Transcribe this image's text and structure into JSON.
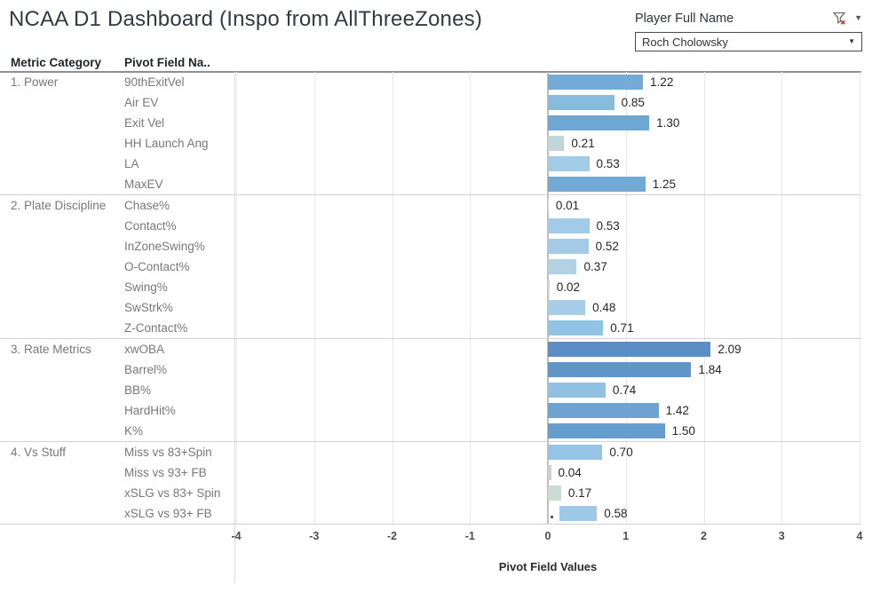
{
  "header": {
    "title": "NCAA D1 Dashboard (Inspo from AllThreeZones)",
    "filter": {
      "label": "Player Full Name",
      "selected": "Roch Cholowsky"
    }
  },
  "table": {
    "col1_header": "Metric Category",
    "col2_header": "Pivot Field Na.."
  },
  "chart_data": {
    "type": "bar",
    "orientation": "horizontal",
    "xlabel": "Pivot Field Values",
    "xlim": [
      -4,
      4
    ],
    "x_ticks": [
      -4,
      -3,
      -2,
      -1,
      0,
      1,
      2,
      3,
      4
    ],
    "x_tick_labels": [
      "-4",
      "-3",
      "-2",
      "-1",
      "0",
      "1",
      "2",
      "3",
      "4"
    ],
    "grid": true,
    "groups": [
      {
        "category": "1. Power",
        "rows": [
          {
            "label": "90thExitVel",
            "value": 1.22,
            "display": "1.22",
            "color": "#74abd6"
          },
          {
            "label": "Air EV",
            "value": 0.85,
            "display": "0.85",
            "color": "#88bcdf"
          },
          {
            "label": "Exit Vel",
            "value": 1.3,
            "display": "1.30",
            "color": "#6fa7d4"
          },
          {
            "label": "HH Launch Ang",
            "value": 0.21,
            "display": "0.21",
            "color": "#c2d5d8"
          },
          {
            "label": "LA",
            "value": 0.53,
            "display": "0.53",
            "color": "#a2cbe8"
          },
          {
            "label": "MaxEV",
            "value": 1.25,
            "display": "1.25",
            "color": "#72a9d5"
          }
        ]
      },
      {
        "category": "2. Plate Discipline",
        "rows": [
          {
            "label": "Chase%",
            "value": 0.01,
            "display": "0.01",
            "color": "#d9d9d9"
          },
          {
            "label": "Contact%",
            "value": 0.53,
            "display": "0.53",
            "color": "#a2cbe8"
          },
          {
            "label": "InZoneSwing%",
            "value": 0.52,
            "display": "0.52",
            "color": "#a3cbe8"
          },
          {
            "label": "O-Contact%",
            "value": 0.37,
            "display": "0.37",
            "color": "#b2d1e3"
          },
          {
            "label": "Swing%",
            "value": 0.02,
            "display": "0.02",
            "color": "#d9d9d9"
          },
          {
            "label": "SwStrk%",
            "value": 0.48,
            "display": "0.48",
            "color": "#a7cde9"
          },
          {
            "label": "Z-Contact%",
            "value": 0.71,
            "display": "0.71",
            "color": "#93c3e4"
          }
        ]
      },
      {
        "category": "3. Rate Metrics",
        "rows": [
          {
            "label": "xwOBA",
            "value": 2.09,
            "display": "2.09",
            "color": "#5a8ec4"
          },
          {
            "label": "Barrel%",
            "value": 1.84,
            "display": "1.84",
            "color": "#6096c9"
          },
          {
            "label": "BB%",
            "value": 0.74,
            "display": "0.74",
            "color": "#90c1e3"
          },
          {
            "label": "HardHit%",
            "value": 1.42,
            "display": "1.42",
            "color": "#6ba3d3"
          },
          {
            "label": "K%",
            "value": 1.5,
            "display": "1.50",
            "color": "#659dce"
          }
        ]
      },
      {
        "category": "4. Vs Stuff",
        "rows": [
          {
            "label": "Miss vs 83+Spin",
            "value": 0.7,
            "display": "0.70",
            "color": "#95c4e5"
          },
          {
            "label": "Miss vs 93+ FB",
            "value": 0.04,
            "display": "0.04",
            "color": "#cfcfcf"
          },
          {
            "label": "xSLG vs 83+ Spin",
            "value": 0.17,
            "display": "0.17",
            "color": "#ccdcd2"
          },
          {
            "label": "xSLG vs 93+ FB",
            "value": 0.58,
            "display": "0.58",
            "color": "#9dc8e7",
            "bar_start": 0.15,
            "bar_end": 0.63,
            "dot_at_zero": true
          }
        ]
      }
    ]
  },
  "colors": {
    "bar_high": "#5a8ec4",
    "bar_low": "#ccdcd2",
    "zero_line": "#bdbdbd",
    "gridline": "#e8e8e8",
    "filter_x": "#c0392b"
  }
}
